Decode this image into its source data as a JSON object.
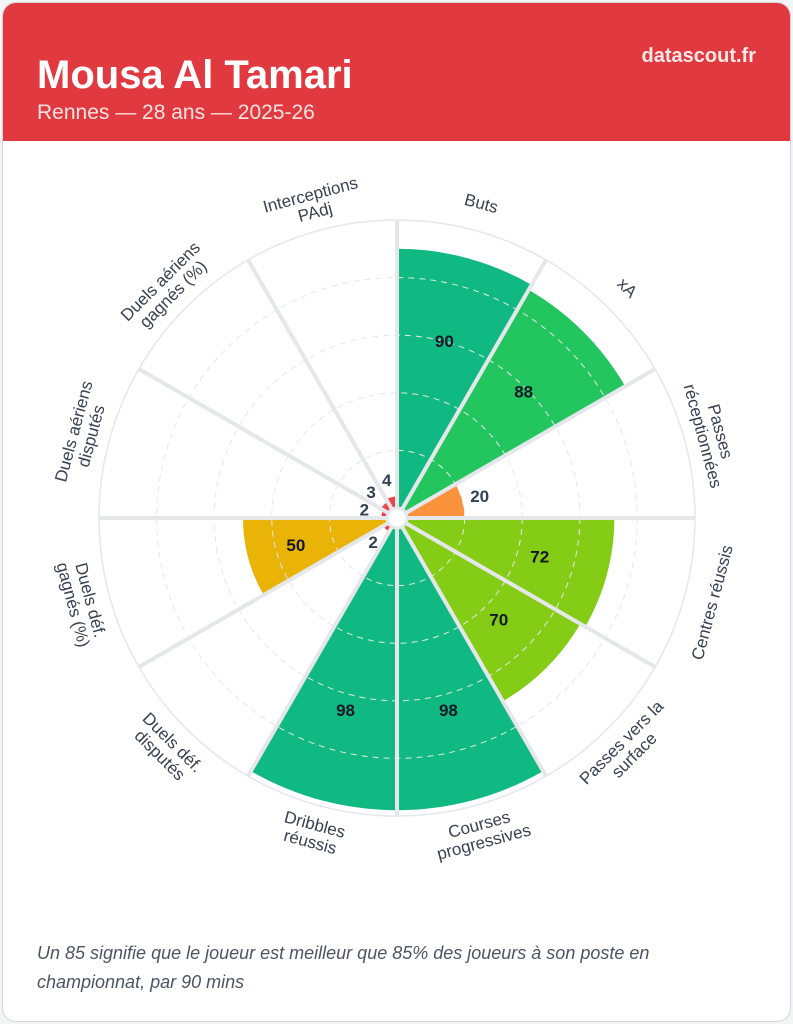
{
  "header": {
    "title": "Mousa Al Tamari",
    "subtitle": "Rennes — 28 ans — 2025-26",
    "brand": "datascout.fr"
  },
  "footer": {
    "note": "Un 85 signifie que le joueur est meilleur que 85% des joueurs à son poste en championnat, par 90 mins"
  },
  "chart_data": {
    "type": "pizza",
    "title": "Mousa Al Tamari",
    "range": [
      0,
      100
    ],
    "grid": [
      20,
      40,
      60,
      80
    ],
    "categories": [
      {
        "label": [
          "Buts"
        ],
        "value": 90,
        "color": "#10b981"
      },
      {
        "label": [
          "xA"
        ],
        "value": 88,
        "color": "#22c55e"
      },
      {
        "label": [
          "Passes",
          "réceptionnées"
        ],
        "value": 20,
        "color": "#fb923c"
      },
      {
        "label": [
          "Centres réussis"
        ],
        "value": 72,
        "color": "#84cc16"
      },
      {
        "label": [
          "Passes vers la",
          "surface"
        ],
        "value": 70,
        "color": "#84cc16"
      },
      {
        "label": [
          "Courses",
          "progressives"
        ],
        "value": 98,
        "color": "#10b981"
      },
      {
        "label": [
          "Dribbles",
          "réussis"
        ],
        "value": 98,
        "color": "#10b981"
      },
      {
        "label": [
          "Duels déf.",
          "disputés"
        ],
        "value": 2,
        "color": "#ef4444"
      },
      {
        "label": [
          "Duels déf.",
          "gagnés (%)"
        ],
        "value": 50,
        "color": "#eab308"
      },
      {
        "label": [
          "Duels aériens",
          "disputés"
        ],
        "value": 2,
        "color": "#ef4444"
      },
      {
        "label": [
          "Duels aériens",
          "gagnés (%)"
        ],
        "value": 3,
        "color": "#ef4444"
      },
      {
        "label": [
          "Interceptions",
          "PAdj"
        ],
        "value": 4,
        "color": "#ef4444"
      }
    ]
  }
}
